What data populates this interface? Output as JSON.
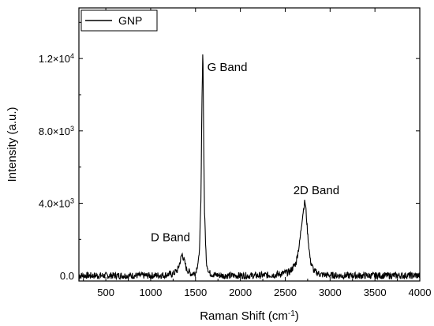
{
  "chart_data": {
    "type": "line",
    "title": "",
    "xlabel": "Raman Shift (cm",
    "xlabel_sup": "-1",
    "xlabel_close": ")",
    "ylabel": "Intensity (a.u.)",
    "xlim": [
      200,
      4000
    ],
    "ylim": [
      -300,
      14800
    ],
    "x_ticks": [
      500,
      1000,
      1500,
      2000,
      2500,
      3000,
      3500,
      4000
    ],
    "x_tick_labels": [
      "500",
      "1000",
      "1500",
      "2000",
      "2500",
      "3000",
      "3500",
      "4000"
    ],
    "y_ticks": [
      {
        "value": 0,
        "mantissa": "0.0",
        "exp": ""
      },
      {
        "value": 4000,
        "mantissa": "4.0×10",
        "exp": "3"
      },
      {
        "value": 8000,
        "mantissa": "8.0×10",
        "exp": "3"
      },
      {
        "value": 12000,
        "mantissa": "1.2×10",
        "exp": "4"
      }
    ],
    "grid": false,
    "legend_position": "top-left",
    "series": [
      {
        "name": "GNP",
        "color": "#000000",
        "x": [
          200,
          400,
          600,
          800,
          1000,
          1150,
          1250,
          1300,
          1330,
          1350,
          1370,
          1400,
          1450,
          1500,
          1540,
          1560,
          1570,
          1580,
          1585,
          1590,
          1600,
          1620,
          1650,
          1700,
          1800,
          2000,
          2200,
          2400,
          2550,
          2620,
          2660,
          2690,
          2710,
          2720,
          2730,
          2750,
          2780,
          2820,
          2900,
          3100,
          3400,
          3700,
          4000
        ],
        "y": [
          0,
          0,
          0,
          0,
          0,
          30,
          100,
          300,
          800,
          1200,
          900,
          350,
          100,
          150,
          1000,
          4000,
          9000,
          12300,
          11500,
          8000,
          3500,
          800,
          150,
          50,
          0,
          0,
          0,
          50,
          200,
          700,
          1800,
          3200,
          3900,
          4100,
          3700,
          2300,
          800,
          250,
          50,
          0,
          0,
          0,
          0
        ]
      }
    ],
    "annotations": [
      {
        "text": "G Band",
        "x": 1630,
        "y": 11300
      },
      {
        "text": "2D Band",
        "x": 2590,
        "y": 4500
      },
      {
        "text": "D Band",
        "x": 1000,
        "y": 1900
      }
    ]
  }
}
